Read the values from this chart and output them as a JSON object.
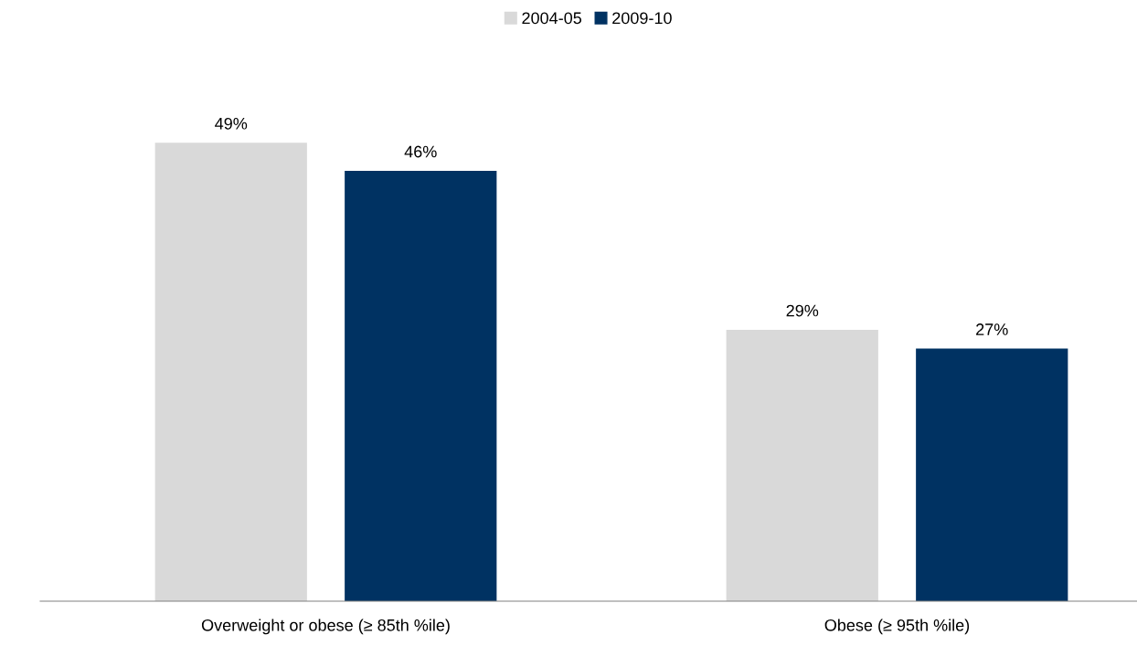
{
  "chart_data": {
    "type": "bar",
    "categories": [
      "Overweight or obese (≥ 85th %ile)",
      "Obese (≥ 95th %ile)"
    ],
    "series": [
      {
        "name": "2004-05",
        "color": "#d9d9d9",
        "values": [
          49,
          29
        ],
        "value_labels": [
          "49%",
          "29%"
        ]
      },
      {
        "name": "2009-10",
        "color": "#003262",
        "values": [
          46,
          27
        ],
        "value_labels": [
          "46%",
          "27%"
        ]
      }
    ],
    "tick_labels": "x",
    "grid": false,
    "legend": "top"
  }
}
